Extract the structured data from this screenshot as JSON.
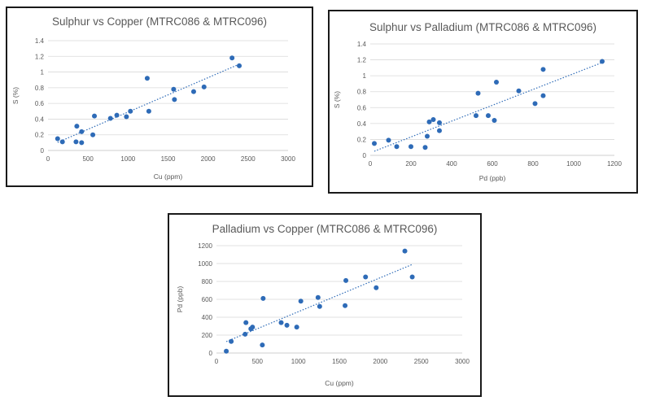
{
  "colors": {
    "marker": "#2e6bb7",
    "trendline": "#2e6bb7",
    "grid": "#d9d9d9",
    "text": "#595959",
    "border": "#1a1a1a"
  },
  "chart_data": [
    {
      "type": "scatter",
      "title": "Sulphur vs Copper (MTRC086 & MTRC096)",
      "xlabel": "Cu (ppm)",
      "ylabel": "S (%)",
      "xlim": [
        0,
        3000
      ],
      "ylim": [
        0,
        1.4
      ],
      "xticks": [
        0,
        500,
        1000,
        1500,
        2000,
        2500,
        3000
      ],
      "yticks": [
        0,
        0.2,
        0.4,
        0.6,
        0.8,
        1,
        1.2,
        1.4
      ],
      "xtick_labels": [
        "0",
        "500",
        "1000",
        "1500",
        "2000",
        "2500",
        "3000"
      ],
      "ytick_labels": [
        "0",
        "0.2",
        "0.4",
        "0.6",
        "0.8",
        "1",
        "1.2",
        "1.4"
      ],
      "grid": "horizontal",
      "legend": "none",
      "trendline": "linear",
      "points": [
        {
          "x": 120,
          "y": 0.15
        },
        {
          "x": 180,
          "y": 0.11
        },
        {
          "x": 350,
          "y": 0.11
        },
        {
          "x": 360,
          "y": 0.31
        },
        {
          "x": 420,
          "y": 0.1
        },
        {
          "x": 420,
          "y": 0.24
        },
        {
          "x": 560,
          "y": 0.2
        },
        {
          "x": 580,
          "y": 0.44
        },
        {
          "x": 780,
          "y": 0.41
        },
        {
          "x": 860,
          "y": 0.45
        },
        {
          "x": 980,
          "y": 0.43
        },
        {
          "x": 1030,
          "y": 0.5
        },
        {
          "x": 1240,
          "y": 0.92
        },
        {
          "x": 1260,
          "y": 0.5
        },
        {
          "x": 1570,
          "y": 0.78
        },
        {
          "x": 1580,
          "y": 0.65
        },
        {
          "x": 1820,
          "y": 0.75
        },
        {
          "x": 1950,
          "y": 0.81
        },
        {
          "x": 2300,
          "y": 1.18
        },
        {
          "x": 2390,
          "y": 1.08
        }
      ]
    },
    {
      "type": "scatter",
      "title": "Sulphur vs Palladium (MTRC086 & MTRC096)",
      "xlabel": "Pd (ppb)",
      "ylabel": "S (%)",
      "xlim": [
        0,
        1200
      ],
      "ylim": [
        0,
        1.4
      ],
      "xticks": [
        0,
        200,
        400,
        600,
        800,
        1000,
        1200
      ],
      "yticks": [
        0,
        0.2,
        0.4,
        0.6,
        0.8,
        1,
        1.2,
        1.4
      ],
      "xtick_labels": [
        "0",
        "200",
        "400",
        "600",
        "800",
        "1000",
        "1200"
      ],
      "ytick_labels": [
        "0",
        "0.2",
        "0.4",
        "0.6",
        "0.8",
        "1",
        "1.2",
        "1.4"
      ],
      "grid": "horizontal",
      "legend": "none",
      "trendline": "linear",
      "points": [
        {
          "x": 20,
          "y": 0.15
        },
        {
          "x": 90,
          "y": 0.19
        },
        {
          "x": 130,
          "y": 0.11
        },
        {
          "x": 200,
          "y": 0.11
        },
        {
          "x": 270,
          "y": 0.1
        },
        {
          "x": 280,
          "y": 0.24
        },
        {
          "x": 290,
          "y": 0.42
        },
        {
          "x": 310,
          "y": 0.45
        },
        {
          "x": 340,
          "y": 0.31
        },
        {
          "x": 340,
          "y": 0.41
        },
        {
          "x": 520,
          "y": 0.5
        },
        {
          "x": 530,
          "y": 0.78
        },
        {
          "x": 580,
          "y": 0.5
        },
        {
          "x": 610,
          "y": 0.44
        },
        {
          "x": 620,
          "y": 0.92
        },
        {
          "x": 730,
          "y": 0.81
        },
        {
          "x": 810,
          "y": 0.65
        },
        {
          "x": 850,
          "y": 0.75
        },
        {
          "x": 850,
          "y": 1.08
        },
        {
          "x": 1140,
          "y": 1.18
        }
      ]
    },
    {
      "type": "scatter",
      "title": "Palladium vs Copper (MTRC086 & MTRC096)",
      "xlabel": "Cu (ppm)",
      "ylabel": "Pd (ppb)",
      "xlim": [
        0,
        3000
      ],
      "ylim": [
        0,
        1200
      ],
      "xticks": [
        0,
        500,
        1000,
        1500,
        2000,
        2500,
        3000
      ],
      "yticks": [
        0,
        200,
        400,
        600,
        800,
        1000,
        1200
      ],
      "xtick_labels": [
        "0",
        "500",
        "1000",
        "1500",
        "2000",
        "2500",
        "3000"
      ],
      "ytick_labels": [
        "0",
        "200",
        "400",
        "600",
        "800",
        "1000",
        "1200"
      ],
      "grid": "horizontal",
      "legend": "none",
      "trendline": "linear",
      "points": [
        {
          "x": 120,
          "y": 20
        },
        {
          "x": 180,
          "y": 130
        },
        {
          "x": 350,
          "y": 210
        },
        {
          "x": 360,
          "y": 340
        },
        {
          "x": 420,
          "y": 270
        },
        {
          "x": 440,
          "y": 290
        },
        {
          "x": 560,
          "y": 90
        },
        {
          "x": 570,
          "y": 610
        },
        {
          "x": 790,
          "y": 340
        },
        {
          "x": 860,
          "y": 310
        },
        {
          "x": 980,
          "y": 290
        },
        {
          "x": 1030,
          "y": 580
        },
        {
          "x": 1240,
          "y": 620
        },
        {
          "x": 1260,
          "y": 520
        },
        {
          "x": 1570,
          "y": 530
        },
        {
          "x": 1580,
          "y": 810
        },
        {
          "x": 1820,
          "y": 850
        },
        {
          "x": 1950,
          "y": 730
        },
        {
          "x": 2300,
          "y": 1140
        },
        {
          "x": 2390,
          "y": 850
        }
      ]
    }
  ]
}
